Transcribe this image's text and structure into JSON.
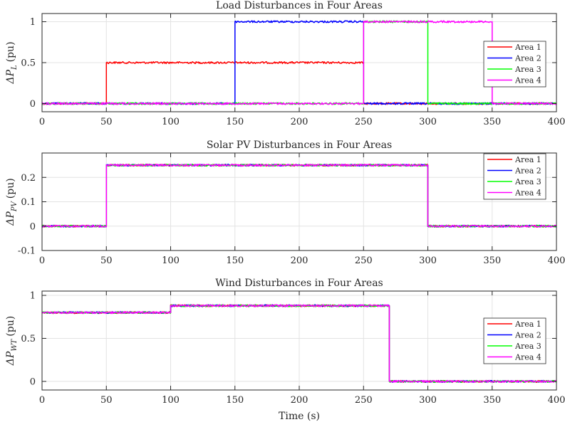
{
  "chart_data": [
    {
      "type": "line",
      "title": "Load Disturbances in Four Areas",
      "ylabel": "ΔP",
      "ylabel_sub": "L",
      "ylabel_unit": "(pu)",
      "xlabel": "",
      "xlim": [
        0,
        400
      ],
      "ylim": [
        -0.1,
        1.1
      ],
      "xticks": [
        0,
        50,
        100,
        150,
        200,
        250,
        300,
        350,
        400
      ],
      "yticks": [
        0,
        0.5,
        1
      ],
      "ytick_labels": [
        "0",
        "0.5",
        "1"
      ],
      "grid": true,
      "legend_position": "right",
      "series": [
        {
          "name": "Area 1",
          "color": "#ff0000",
          "x": [
            0,
            50,
            50,
            250,
            250,
            400
          ],
          "y": [
            0,
            0,
            0.5,
            0.5,
            0,
            0
          ]
        },
        {
          "name": "Area 2",
          "color": "#0000ff",
          "x": [
            0,
            150,
            150,
            250,
            250,
            400
          ],
          "y": [
            0,
            0,
            1,
            1,
            0,
            0
          ]
        },
        {
          "name": "Area 3",
          "color": "#00ff00",
          "x": [
            0,
            250,
            250,
            300,
            300,
            400
          ],
          "y": [
            0,
            0,
            1,
            1,
            0,
            0
          ]
        },
        {
          "name": "Area 4",
          "color": "#ff00ff",
          "x": [
            0,
            250,
            250,
            350,
            350,
            400
          ],
          "y": [
            0,
            0,
            1,
            1,
            0,
            0
          ]
        }
      ]
    },
    {
      "type": "line",
      "title": "Solar PV Disturbances in Four Areas",
      "ylabel": "ΔP",
      "ylabel_sub": "PV",
      "ylabel_unit": "(pu)",
      "xlabel": "",
      "xlim": [
        0,
        400
      ],
      "ylim": [
        -0.1,
        0.3
      ],
      "xticks": [
        0,
        50,
        100,
        150,
        200,
        250,
        300,
        350,
        400
      ],
      "yticks": [
        -0.1,
        0,
        0.1,
        0.2
      ],
      "ytick_labels": [
        "-0.1",
        "0",
        "0.1",
        "0.2"
      ],
      "grid": true,
      "legend_position": "top-right",
      "series": [
        {
          "name": "Area 1",
          "color": "#ff0000",
          "x": [
            0,
            50,
            50,
            300,
            300,
            400
          ],
          "y": [
            0,
            0,
            0.25,
            0.25,
            0,
            0
          ]
        },
        {
          "name": "Area 2",
          "color": "#0000ff",
          "x": [
            0,
            50,
            50,
            300,
            300,
            400
          ],
          "y": [
            0,
            0,
            0.25,
            0.25,
            0,
            0
          ]
        },
        {
          "name": "Area 3",
          "color": "#00ff00",
          "x": [
            0,
            50,
            50,
            300,
            300,
            400
          ],
          "y": [
            0,
            0,
            0.25,
            0.25,
            0,
            0
          ]
        },
        {
          "name": "Area 4",
          "color": "#ff00ff",
          "x": [
            0,
            50,
            50,
            300,
            300,
            400
          ],
          "y": [
            0,
            0,
            0.25,
            0.25,
            0,
            0
          ]
        }
      ]
    },
    {
      "type": "line",
      "title": "Wind Disturbances in Four Areas",
      "ylabel": "ΔP",
      "ylabel_sub": "WT",
      "ylabel_unit": "(pu)",
      "xlabel": "Time (s)",
      "xlim": [
        0,
        400
      ],
      "ylim": [
        -0.1,
        1.05
      ],
      "xticks": [
        0,
        50,
        100,
        150,
        200,
        250,
        300,
        350,
        400
      ],
      "yticks": [
        0,
        0.5,
        1
      ],
      "ytick_labels": [
        "0",
        "0.5",
        "1"
      ],
      "grid": true,
      "legend_position": "right",
      "series": [
        {
          "name": "Area 1",
          "color": "#ff0000",
          "x": [
            0,
            100,
            100,
            270,
            270,
            400
          ],
          "y": [
            0.8,
            0.8,
            0.88,
            0.88,
            0,
            0
          ]
        },
        {
          "name": "Area 2",
          "color": "#0000ff",
          "x": [
            0,
            100,
            100,
            270,
            270,
            400
          ],
          "y": [
            0.8,
            0.8,
            0.88,
            0.88,
            0,
            0
          ]
        },
        {
          "name": "Area 3",
          "color": "#00ff00",
          "x": [
            0,
            100,
            100,
            270,
            270,
            400
          ],
          "y": [
            0.8,
            0.8,
            0.88,
            0.88,
            0,
            0
          ]
        },
        {
          "name": "Area 4",
          "color": "#ff00ff",
          "x": [
            0,
            100,
            100,
            270,
            270,
            400
          ],
          "y": [
            0.8,
            0.8,
            0.88,
            0.88,
            0,
            0
          ]
        }
      ]
    }
  ]
}
